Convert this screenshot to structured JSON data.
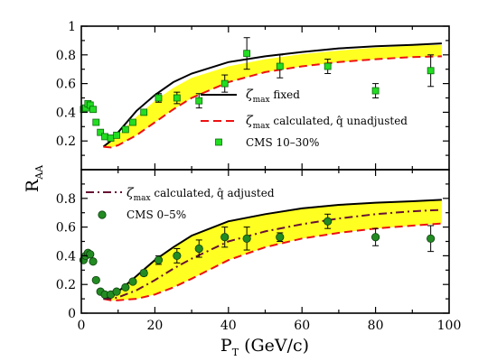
{
  "chart_data": [
    {
      "type": "line",
      "panel": "top",
      "ylabel": "R_AA",
      "ylabel_main": "R",
      "ylabel_sub": "AA",
      "xlim": [
        0,
        100
      ],
      "ylim": [
        0,
        1
      ],
      "yticks": [
        0.2,
        0.4,
        0.6,
        0.8,
        1
      ],
      "ytick_labels": [
        "0.2",
        "0.4",
        "0.6",
        "0.8",
        "1"
      ],
      "band": {
        "color": "#ffff22",
        "x": [
          6,
          8,
          10,
          15,
          20,
          25,
          30,
          40,
          50,
          60,
          70,
          80,
          90,
          98
        ],
        "upper": [
          0.16,
          0.19,
          0.24,
          0.37,
          0.48,
          0.57,
          0.64,
          0.72,
          0.77,
          0.805,
          0.83,
          0.85,
          0.865,
          0.87
        ],
        "lower": [
          0.16,
          0.155,
          0.17,
          0.24,
          0.33,
          0.42,
          0.5,
          0.61,
          0.68,
          0.72,
          0.75,
          0.77,
          0.785,
          0.79
        ]
      },
      "series": [
        {
          "name": "fixed",
          "style": "solid",
          "color": "#000000",
          "x": [
            6,
            8,
            10,
            15,
            20,
            25,
            30,
            40,
            50,
            60,
            70,
            80,
            90,
            98
          ],
          "y": [
            0.16,
            0.2,
            0.26,
            0.41,
            0.52,
            0.61,
            0.67,
            0.75,
            0.79,
            0.82,
            0.845,
            0.86,
            0.87,
            0.88
          ]
        },
        {
          "name": "calculated, q unadjusted",
          "style": "dashed",
          "color": "#ee1111",
          "x": [
            6,
            8,
            10,
            15,
            20,
            25,
            30,
            40,
            50,
            60,
            70,
            80,
            90,
            98
          ],
          "y": [
            0.16,
            0.155,
            0.17,
            0.24,
            0.33,
            0.42,
            0.5,
            0.61,
            0.68,
            0.72,
            0.75,
            0.77,
            0.785,
            0.79
          ]
        }
      ],
      "data_points": {
        "name": "CMS 10-30%",
        "marker": "square",
        "color": "#22dd22",
        "x": [
          0.6,
          1.2,
          1.8,
          2.4,
          3.2,
          4.0,
          5.2,
          6.4,
          8.0,
          9.6,
          12.0,
          14.0,
          17.0,
          21.0,
          26.0,
          32.0,
          39.0,
          45.0,
          54.0,
          67.0,
          80.0,
          95.0
        ],
        "y": [
          0.42,
          0.43,
          0.46,
          0.45,
          0.42,
          0.33,
          0.26,
          0.23,
          0.22,
          0.24,
          0.28,
          0.33,
          0.4,
          0.5,
          0.5,
          0.48,
          0.6,
          0.81,
          0.72,
          0.72,
          0.55,
          0.69
        ],
        "err": [
          0,
          0,
          0,
          0,
          0,
          0,
          0,
          0,
          0,
          0,
          0,
          0,
          0.02,
          0.03,
          0.04,
          0.05,
          0.06,
          0.11,
          0.08,
          0.05,
          0.05,
          0.11
        ]
      },
      "legend": [
        {
          "symbol": "ζ",
          "sub": "max",
          "text": " fixed",
          "hat": "",
          "rest": ""
        },
        {
          "symbol": "ζ",
          "sub": "max",
          "text": " calculated,",
          "hat": "q",
          "rest": " unadjusted"
        },
        {
          "symbol": "",
          "sub": "",
          "text": "CMS 10–30%",
          "hat": "",
          "rest": ""
        }
      ],
      "legend_position": "lower-right",
      "grid": false
    },
    {
      "type": "line",
      "panel": "bottom",
      "xlabel": "P_T (GeV/c)",
      "xlabel_main": "P",
      "xlabel_sub": "T",
      "xlabel_rest": " (GeV/c)",
      "xlim": [
        0,
        100
      ],
      "ylim": [
        0,
        1
      ],
      "xticks": [
        0,
        20,
        40,
        60,
        80,
        100
      ],
      "xtick_labels": [
        "0",
        "20",
        "40",
        "60",
        "80",
        "100"
      ],
      "yticks": [
        0,
        0.2,
        0.4,
        0.6,
        0.8
      ],
      "ytick_labels": [
        "0",
        "0.2",
        "0.4",
        "0.6",
        "0.8"
      ],
      "band": {
        "color": "#ffff22",
        "x": [
          6,
          8,
          10,
          15,
          20,
          25,
          30,
          40,
          50,
          60,
          70,
          80,
          90,
          98
        ],
        "upper": [
          0.1,
          0.11,
          0.15,
          0.26,
          0.37,
          0.46,
          0.54,
          0.64,
          0.69,
          0.73,
          0.755,
          0.77,
          0.78,
          0.79
        ],
        "lower": [
          0.1,
          0.09,
          0.09,
          0.1,
          0.13,
          0.18,
          0.24,
          0.37,
          0.46,
          0.52,
          0.56,
          0.59,
          0.61,
          0.625
        ]
      },
      "series": [
        {
          "name": "fixed",
          "style": "solid",
          "color": "#000000",
          "x": [
            6,
            8,
            10,
            15,
            20,
            25,
            30,
            40,
            50,
            60,
            70,
            80,
            90,
            98
          ],
          "y": [
            0.1,
            0.11,
            0.15,
            0.26,
            0.37,
            0.46,
            0.54,
            0.64,
            0.69,
            0.73,
            0.755,
            0.77,
            0.78,
            0.79
          ]
        },
        {
          "name": "calculated, q unadjusted",
          "style": "dashed",
          "color": "#ee1111",
          "x": [
            6,
            8,
            10,
            15,
            20,
            25,
            30,
            40,
            50,
            60,
            70,
            80,
            90,
            98
          ],
          "y": [
            0.1,
            0.09,
            0.09,
            0.1,
            0.13,
            0.18,
            0.24,
            0.37,
            0.46,
            0.52,
            0.56,
            0.59,
            0.61,
            0.625
          ]
        },
        {
          "name": "calculated, q adjusted",
          "style": "dashdot",
          "color": "#661133",
          "x": [
            6,
            8,
            10,
            15,
            20,
            25,
            30,
            40,
            50,
            60,
            70,
            80,
            90,
            98
          ],
          "y": [
            0.1,
            0.1,
            0.11,
            0.16,
            0.23,
            0.31,
            0.38,
            0.5,
            0.57,
            0.62,
            0.66,
            0.69,
            0.71,
            0.72
          ]
        }
      ],
      "data_points": {
        "name": "CMS 0-5%",
        "marker": "circle",
        "color": "#228b22",
        "x": [
          0.6,
          1.2,
          1.8,
          2.4,
          3.2,
          4.0,
          5.2,
          6.4,
          8.0,
          9.6,
          12.0,
          14.0,
          17.0,
          21.0,
          26.0,
          32.0,
          39.0,
          45.0,
          54.0,
          67.0,
          80.0,
          95.0
        ],
        "y": [
          0.37,
          0.4,
          0.42,
          0.41,
          0.36,
          0.23,
          0.15,
          0.13,
          0.13,
          0.15,
          0.18,
          0.22,
          0.28,
          0.37,
          0.4,
          0.45,
          0.53,
          0.52,
          0.53,
          0.64,
          0.53,
          0.52
        ],
        "err": [
          0,
          0,
          0,
          0,
          0,
          0,
          0,
          0,
          0,
          0,
          0,
          0,
          0.02,
          0.03,
          0.05,
          0.06,
          0.07,
          0.08,
          0.03,
          0.05,
          0.06,
          0.09
        ]
      },
      "legend": [
        {
          "symbol": "ζ",
          "sub": "max",
          "text": " calculated,",
          "hat": "q",
          "rest": " adjusted"
        },
        {
          "symbol": "",
          "sub": "",
          "text": "CMS 0–5%",
          "hat": "",
          "rest": ""
        }
      ],
      "legend_position": "top-left",
      "grid": false
    }
  ]
}
